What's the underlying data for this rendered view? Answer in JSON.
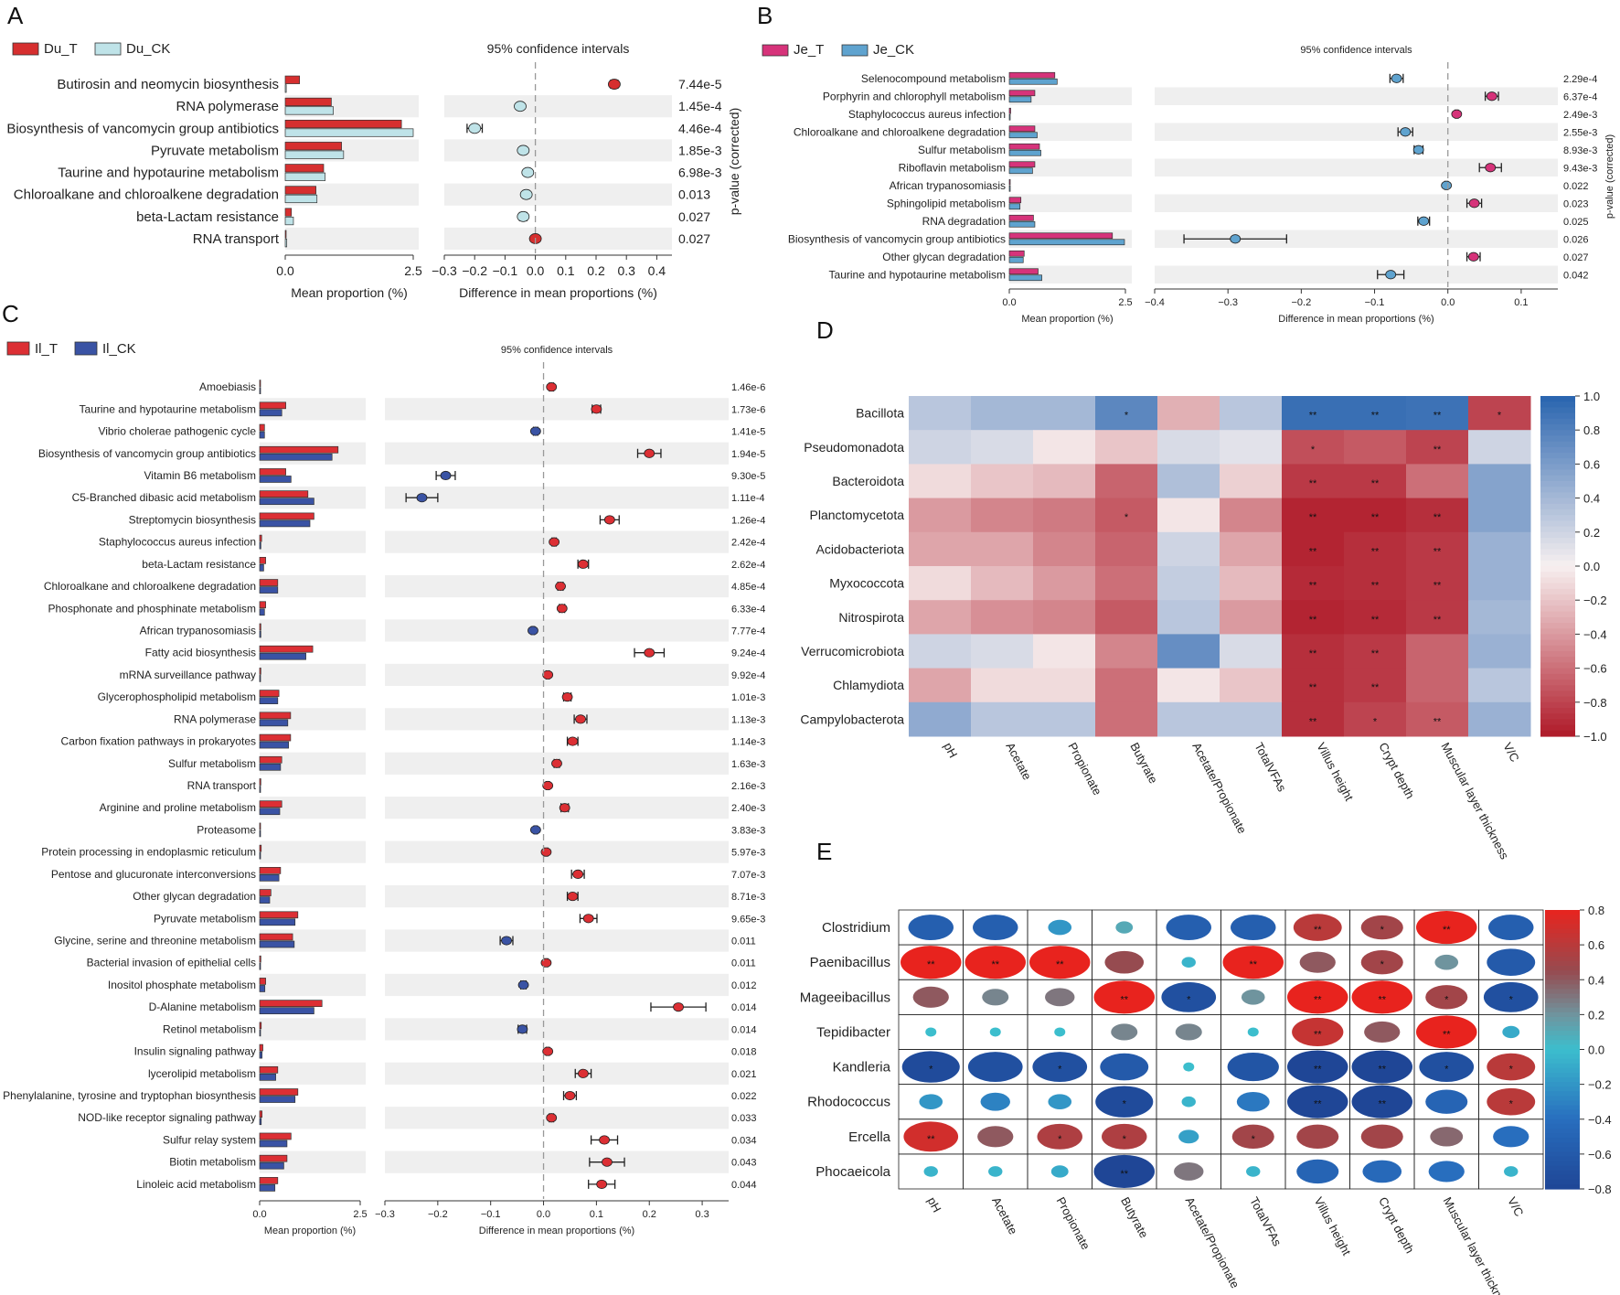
{
  "colors": {
    "du_t": "#d62f2f",
    "du_ck": "#bfe3e8",
    "je_t": "#d6337a",
    "je_ck": "#5fa3cf",
    "il_t": "#dc2f34",
    "il_ck": "#3a53a4",
    "stripe": "#efefef"
  },
  "chart_data": [
    {
      "panel": "A",
      "type": "bar",
      "legend": [
        "Du_T",
        "Du_CK"
      ],
      "ci_title": "95% confidence intervals",
      "xlabel_bar": "Mean proportion (%)",
      "xlabel_diff": "Difference in mean proportions (%)",
      "pvalue_label": "p-value (corrected)",
      "bar_xlim": [
        0,
        2.5
      ],
      "bar_ticks": [
        "0.0",
        "2.5"
      ],
      "diff_xlim": [
        -0.3,
        0.45
      ],
      "diff_ticks": [
        "−0.3",
        "−0.2",
        "−0.1",
        "0.0",
        "0.1",
        "0.2",
        "0.3",
        "0.4"
      ],
      "diff_tick_values": [
        -0.3,
        -0.2,
        -0.1,
        0,
        0.1,
        0.2,
        0.3,
        0.4
      ],
      "categories": [
        "Butirosin and neomycin biosynthesis",
        "RNA polymerase",
        "Biosynthesis of vancomycin group antibiotics",
        "Pyruvate metabolism",
        "Taurine and hypotaurine metabolism",
        "Chloroalkane and chloroalkene degradation",
        "beta-Lactam resistance",
        "RNA transport"
      ],
      "series": [
        {
          "name": "Du_T",
          "values": [
            0.28,
            0.9,
            2.27,
            1.1,
            0.75,
            0.6,
            0.12,
            0.01
          ]
        },
        {
          "name": "Du_CK",
          "values": [
            0.02,
            0.94,
            2.5,
            1.14,
            0.78,
            0.62,
            0.16,
            0.03
          ]
        }
      ],
      "diff": [
        0.26,
        -0.05,
        -0.2,
        -0.04,
        -0.025,
        -0.03,
        -0.04,
        0.0
      ],
      "diff_err": [
        0.012,
        0.008,
        0.025,
        0.01,
        0.008,
        0.01,
        0.012,
        0.004
      ],
      "pvalues": [
        "7.44e-5",
        "1.45e-4",
        "4.46e-4",
        "1.85e-3",
        "6.98e-3",
        "0.013",
        "0.027",
        "0.027"
      ]
    },
    {
      "panel": "B",
      "type": "bar",
      "legend": [
        "Je_T",
        "Je_CK"
      ],
      "ci_title": "95% confidence intervals",
      "xlabel_bar": "Mean proportion (%)",
      "xlabel_diff": "Difference in mean proportions (%)",
      "pvalue_label": "p-value (corrected)",
      "bar_xlim": [
        0,
        2.5
      ],
      "bar_ticks": [
        "0.0",
        "2.5"
      ],
      "diff_xlim": [
        -0.4,
        0.15
      ],
      "diff_ticks": [
        "−0.4",
        "−0.3",
        "−0.2",
        "−0.1",
        "0.0",
        "0.1"
      ],
      "diff_tick_values": [
        -0.4,
        -0.3,
        -0.2,
        -0.1,
        0,
        0.1
      ],
      "categories": [
        "Selenocompound metabolism",
        "Porphyrin and chlorophyll metabolism",
        "Staphylococcus aureus infection",
        "Chloroalkane and chloroalkene degradation",
        "Sulfur metabolism",
        "Riboflavin metabolism",
        "African trypanosomiasis",
        "Sphingolipid metabolism",
        "RNA degradation",
        "Biosynthesis of vancomycin group antibiotics",
        "Other glycan degradation",
        "Taurine and hypotaurine metabolism"
      ],
      "series": [
        {
          "name": "Je_T",
          "values": [
            0.98,
            0.55,
            0.03,
            0.55,
            0.65,
            0.55,
            0.01,
            0.25,
            0.52,
            2.22,
            0.32,
            0.62
          ]
        },
        {
          "name": "Je_CK",
          "values": [
            1.03,
            0.47,
            0.0,
            0.6,
            0.68,
            0.5,
            0.02,
            0.23,
            0.55,
            2.48,
            0.3,
            0.7
          ]
        }
      ],
      "diff": [
        -0.07,
        0.06,
        0.012,
        -0.058,
        -0.04,
        0.058,
        -0.002,
        0.036,
        -0.033,
        -0.29,
        0.035,
        -0.078
      ],
      "diff_err": [
        0.009,
        0.009,
        0.002,
        0.01,
        0.006,
        0.015,
        0.002,
        0.01,
        0.008,
        0.07,
        0.009,
        0.018
      ],
      "pvalues": [
        "2.29e-4",
        "6.37e-4",
        "2.49e-3",
        "2.55e-3",
        "8.93e-3",
        "9.43e-3",
        "0.022",
        "0.023",
        "0.025",
        "0.026",
        "0.027",
        "0.042"
      ]
    },
    {
      "panel": "C",
      "type": "bar",
      "legend": [
        "Il_T",
        "Il_CK"
      ],
      "ci_title": "95% confidence intervals",
      "xlabel_bar": "Mean proportion (%)",
      "xlabel_diff": "Difference in mean proportions (%)",
      "bar_xlim": [
        0,
        2.5
      ],
      "bar_ticks": [
        "0.0",
        "2.5"
      ],
      "diff_xlim": [
        -0.3,
        0.35
      ],
      "diff_ticks": [
        "−0.3",
        "−0.2",
        "−0.1",
        "0.0",
        "0.1",
        "0.2",
        "0.3"
      ],
      "diff_tick_values": [
        -0.3,
        -0.2,
        -0.1,
        0,
        0.1,
        0.2,
        0.3
      ],
      "categories": [
        "Amoebiasis",
        "Taurine and hypotaurine metabolism",
        "Vibrio cholerae pathogenic cycle",
        "Biosynthesis of vancomycin group antibiotics",
        "Vitamin B6 metabolism",
        "C5-Branched dibasic acid metabolism",
        "Streptomycin biosynthesis",
        "Staphylococcus aureus infection",
        "beta-Lactam resistance",
        "Chloroalkane and chloroalkene degradation",
        "Phosphonate and phosphinate metabolism",
        "African trypanosomiasis",
        "Fatty acid biosynthesis",
        "mRNA surveillance pathway",
        "Glycerophospholipid metabolism",
        "RNA polymerase",
        "Carbon fixation pathways in prokaryotes",
        "Sulfur metabolism",
        "RNA transport",
        "Arginine and proline metabolism",
        "Proteasome",
        "Protein processing in endoplasmic reticulum",
        "Pentose and glucuronate interconversions",
        "Other glycan degradation",
        "Pyruvate metabolism",
        "Glycine, serine and threonine metabolism",
        "Bacterial invasion of epithelial cells",
        "Inositol phosphate metabolism",
        "D-Alanine metabolism",
        "Retinol metabolism",
        "Insulin signaling pathway",
        "lycerolipid metabolism",
        "Phenylalanine, tyrosine and tryptophan biosynthesis",
        "NOD-like receptor signaling pathway",
        "Sulfur relay system",
        "Biotin metabolism",
        "Linoleic acid metabolism"
      ],
      "series": [
        {
          "name": "Il_T",
          "values": [
            0.02,
            0.65,
            0.12,
            1.95,
            0.65,
            1.2,
            1.35,
            0.05,
            0.15,
            0.45,
            0.15,
            0.03,
            1.32,
            0.03,
            0.48,
            0.77,
            0.77,
            0.55,
            0.03,
            0.55,
            0.02,
            0.04,
            0.52,
            0.28,
            0.95,
            0.82,
            0.03,
            0.15,
            1.55,
            0.04,
            0.08,
            0.45,
            0.95,
            0.06,
            0.78,
            0.68,
            0.45
          ]
        },
        {
          "name": "Il_CK",
          "values": [
            0.02,
            0.55,
            0.12,
            1.8,
            0.78,
            1.35,
            1.25,
            0.03,
            0.1,
            0.45,
            0.12,
            0.03,
            1.15,
            0.02,
            0.45,
            0.7,
            0.72,
            0.52,
            0.02,
            0.5,
            0.02,
            0.02,
            0.48,
            0.25,
            0.88,
            0.86,
            0.02,
            0.13,
            1.35,
            0.02,
            0.06,
            0.4,
            0.88,
            0.04,
            0.68,
            0.6,
            0.38
          ]
        }
      ],
      "diff": [
        0.015,
        0.1,
        -0.015,
        0.2,
        -0.185,
        -0.23,
        0.125,
        0.02,
        0.075,
        0.032,
        0.035,
        -0.02,
        0.2,
        0.008,
        0.045,
        0.07,
        0.055,
        0.025,
        0.008,
        0.04,
        -0.015,
        0.005,
        0.065,
        0.055,
        0.085,
        -0.07,
        0.005,
        -0.038,
        0.255,
        -0.04,
        0.008,
        0.075,
        0.05,
        0.015,
        0.115,
        0.12,
        0.11
      ],
      "diff_err": [
        0.004,
        0.008,
        0.004,
        0.022,
        0.018,
        0.03,
        0.018,
        0.004,
        0.01,
        0.005,
        0.005,
        0.003,
        0.028,
        0.003,
        0.007,
        0.012,
        0.01,
        0.005,
        0.003,
        0.007,
        0.003,
        0.003,
        0.012,
        0.01,
        0.016,
        0.012,
        0.003,
        0.005,
        0.052,
        0.008,
        0.003,
        0.015,
        0.012,
        0.004,
        0.025,
        0.033,
        0.025
      ],
      "pvalues": [
        "1.46e-6",
        "1.73e-6",
        "1.41e-5",
        "1.94e-5",
        "9.30e-5",
        "1.11e-4",
        "1.26e-4",
        "2.42e-4",
        "2.62e-4",
        "4.85e-4",
        "6.33e-4",
        "7.77e-4",
        "9.24e-4",
        "9.92e-4",
        "1.01e-3",
        "1.13e-3",
        "1.14e-3",
        "1.63e-3",
        "2.16e-3",
        "2.40e-3",
        "3.83e-3",
        "5.97e-3",
        "7.07e-3",
        "8.71e-3",
        "9.65e-3",
        "0.011",
        "0.011",
        "0.012",
        "0.014",
        "0.014",
        "0.018",
        "0.021",
        "0.022",
        "0.033",
        "0.034",
        "0.043",
        "0.044"
      ]
    },
    {
      "panel": "D",
      "type": "heatmap",
      "rows": [
        "Bacillota",
        "Pseudomonadota",
        "Bacteroidota",
        "Planctomycetota",
        "Acidobacteriota",
        "Myxococcota",
        "Nitrospirota",
        "Verrucomicrobiota",
        "Chlamydiota",
        "Campylobacterota"
      ],
      "columns": [
        "pH",
        "Acetate",
        "Propionate",
        "Butyrate",
        "Acetate/Propionate",
        "TotalVFAs",
        "Villus height",
        "Crypt depth",
        "Muscular layer thickness",
        "V/C"
      ],
      "values": [
        [
          0.3,
          0.4,
          0.4,
          0.75,
          -0.3,
          0.3,
          0.92,
          0.92,
          0.9,
          -0.8
        ],
        [
          0.2,
          0.15,
          -0.05,
          -0.2,
          0.15,
          0.1,
          -0.75,
          -0.7,
          -0.8,
          0.2
        ],
        [
          -0.1,
          -0.2,
          -0.25,
          -0.65,
          0.35,
          -0.15,
          -0.85,
          -0.85,
          -0.6,
          0.55
        ],
        [
          -0.4,
          -0.5,
          -0.55,
          -0.7,
          -0.05,
          -0.5,
          -0.95,
          -0.95,
          -0.9,
          0.55
        ],
        [
          -0.35,
          -0.35,
          -0.5,
          -0.65,
          0.2,
          -0.35,
          -0.95,
          -0.9,
          -0.85,
          0.45
        ],
        [
          -0.1,
          -0.25,
          -0.4,
          -0.6,
          0.25,
          -0.25,
          -0.92,
          -0.9,
          -0.85,
          0.45
        ],
        [
          -0.35,
          -0.45,
          -0.5,
          -0.7,
          0.3,
          -0.4,
          -0.95,
          -0.92,
          -0.85,
          0.4
        ],
        [
          0.2,
          0.15,
          -0.05,
          -0.5,
          0.7,
          0.15,
          -0.9,
          -0.85,
          -0.65,
          0.45
        ],
        [
          -0.35,
          -0.1,
          -0.1,
          -0.6,
          -0.05,
          -0.2,
          -0.9,
          -0.85,
          -0.65,
          0.3
        ],
        [
          0.5,
          0.3,
          0.3,
          -0.6,
          0.3,
          0.3,
          -0.9,
          -0.8,
          -0.7,
          0.45
        ]
      ],
      "stars": [
        [
          "",
          "",
          "",
          "*",
          "",
          "",
          "**",
          "**",
          "**",
          "*"
        ],
        [
          "",
          "",
          "",
          "",
          "",
          "",
          "*",
          "",
          "**",
          ""
        ],
        [
          "",
          "",
          "",
          "",
          "",
          "",
          "**",
          "**",
          "",
          ""
        ],
        [
          "",
          "",
          "",
          "*",
          "",
          "",
          "**",
          "**",
          "**",
          ""
        ],
        [
          "",
          "",
          "",
          "",
          "",
          "",
          "**",
          "**",
          "**",
          ""
        ],
        [
          "",
          "",
          "",
          "",
          "",
          "",
          "**",
          "**",
          "**",
          ""
        ],
        [
          "",
          "",
          "",
          "",
          "",
          "",
          "**",
          "**",
          "**",
          ""
        ],
        [
          "",
          "",
          "",
          "",
          "",
          "",
          "**",
          "**",
          "",
          ""
        ],
        [
          "",
          "",
          "",
          "",
          "",
          "",
          "**",
          "**",
          "",
          ""
        ],
        [
          "",
          "",
          "",
          "",
          "",
          "",
          "**",
          "*",
          "**",
          ""
        ]
      ],
      "colorbar_ticks": [
        "1.0",
        "0.8",
        "0.6",
        "0.4",
        "0.2",
        "0.0",
        "−0.2",
        "−0.4",
        "−0.6",
        "−0.8",
        "−1.0"
      ],
      "vlim": [
        -1,
        1
      ]
    },
    {
      "panel": "E",
      "type": "heatmap",
      "style": "bubble",
      "rows": [
        "Clostridium",
        "Paenibacillus",
        "Mageeibacillus",
        "Tepidibacter",
        "Kandleria",
        "Rhodococcus",
        "Ercella",
        "Phocaeicola"
      ],
      "columns": [
        "pH",
        "Acetate",
        "Propionate",
        "Butyrate",
        "Acetate/Propionate",
        "TotalVFAs",
        "Villus height",
        "Crypt depth",
        "Muscular layer thickness",
        "V/C"
      ],
      "values": [
        [
          -0.55,
          -0.55,
          -0.2,
          0.1,
          -0.55,
          -0.55,
          0.6,
          0.5,
          0.8,
          -0.55
        ],
        [
          0.8,
          0.8,
          0.8,
          0.45,
          -0.05,
          0.8,
          0.4,
          0.5,
          0.2,
          -0.6
        ],
        [
          0.4,
          0.25,
          0.3,
          0.8,
          -0.7,
          0.2,
          0.8,
          0.8,
          0.5,
          -0.7
        ],
        [
          0.0,
          0.0,
          0.0,
          0.25,
          0.25,
          0.0,
          0.65,
          0.4,
          0.8,
          -0.1
        ],
        [
          -0.75,
          -0.7,
          -0.7,
          -0.6,
          0.0,
          -0.65,
          -0.8,
          -0.8,
          -0.7,
          0.6
        ],
        [
          -0.2,
          -0.3,
          -0.2,
          -0.75,
          -0.05,
          -0.35,
          -0.8,
          -0.8,
          -0.5,
          0.6
        ],
        [
          0.7,
          0.4,
          0.55,
          0.55,
          -0.15,
          0.5,
          0.5,
          0.5,
          0.35,
          -0.4
        ],
        [
          -0.05,
          -0.05,
          -0.1,
          -0.8,
          0.3,
          -0.05,
          -0.5,
          -0.45,
          -0.4,
          -0.05
        ]
      ],
      "stars": [
        [
          "",
          "",
          "",
          "",
          "",
          "",
          "**",
          "*",
          "**",
          ""
        ],
        [
          "**",
          "**",
          "**",
          "",
          "",
          "**",
          "",
          "*",
          "",
          ""
        ],
        [
          "",
          "",
          "",
          "**",
          "*",
          "",
          "**",
          "**",
          "*",
          "*"
        ],
        [
          "",
          "",
          "",
          "",
          "",
          "",
          "**",
          "",
          "**",
          ""
        ],
        [
          "*",
          "",
          "*",
          "",
          "",
          "",
          "**",
          "**",
          "*",
          "*"
        ],
        [
          "",
          "",
          "",
          "*",
          "",
          "",
          "**",
          "**",
          "",
          "*"
        ],
        [
          "**",
          "",
          "*",
          "*",
          "",
          "*",
          "",
          "",
          "",
          ""
        ],
        [
          "",
          "",
          "",
          "**",
          "",
          "",
          "",
          "",
          "",
          ""
        ]
      ],
      "colorbar_ticks": [
        "0.8",
        "0.6",
        "0.4",
        "0.2",
        "0.0",
        "−0.2",
        "−0.4",
        "−0.6",
        "−0.8"
      ],
      "vlim": [
        -0.8,
        0.8
      ]
    }
  ],
  "panel_labels": [
    "A",
    "B",
    "C",
    "D",
    "E"
  ]
}
